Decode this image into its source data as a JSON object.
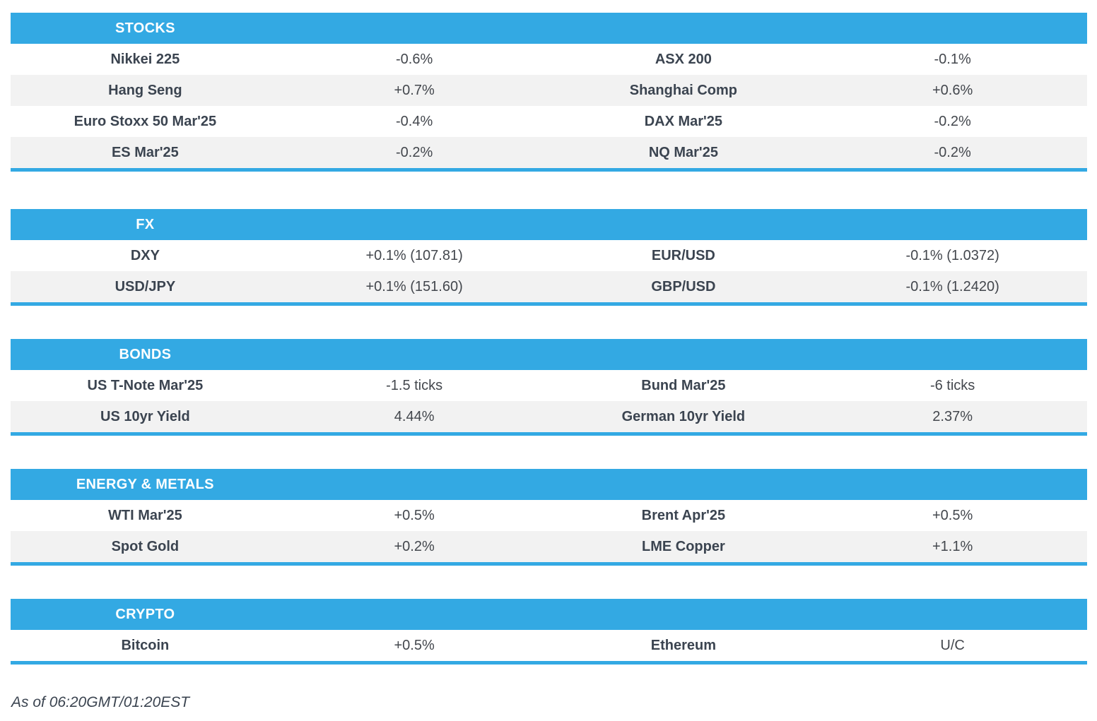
{
  "colors": {
    "accent_blue": "#33a9e3",
    "alt_row_bg": "#f2f2f2",
    "label_text": "#3b4450",
    "value_text": "#43474d",
    "header_text": "#ffffff"
  },
  "sections": [
    {
      "title": "STOCKS",
      "rows": [
        {
          "label_left": "Nikkei 225",
          "value_left": "-0.6%",
          "label_right": "ASX 200",
          "value_right": "-0.1%"
        },
        {
          "label_left": "Hang Seng",
          "value_left": "+0.7%",
          "label_right": "Shanghai Comp",
          "value_right": "+0.6%"
        },
        {
          "label_left": "Euro Stoxx 50 Mar'25",
          "value_left": "-0.4%",
          "label_right": "DAX Mar'25",
          "value_right": "-0.2%"
        },
        {
          "label_left": "ES Mar'25",
          "value_left": "-0.2%",
          "label_right": "NQ Mar'25",
          "value_right": "-0.2%"
        }
      ]
    },
    {
      "title": "FX",
      "rows": [
        {
          "label_left": "DXY",
          "value_left": "+0.1% (107.81)",
          "label_right": "EUR/USD",
          "value_right": "-0.1% (1.0372)"
        },
        {
          "label_left": "USD/JPY",
          "value_left": "+0.1% (151.60)",
          "label_right": "GBP/USD",
          "value_right": "-0.1% (1.2420)"
        }
      ]
    },
    {
      "title": "BONDS",
      "rows": [
        {
          "label_left": "US T-Note Mar'25",
          "value_left": "-1.5 ticks",
          "label_right": "Bund Mar'25",
          "value_right": "-6 ticks"
        },
        {
          "label_left": "US 10yr Yield",
          "value_left": "4.44%",
          "label_right": "German 10yr Yield",
          "value_right": "2.37%"
        }
      ]
    },
    {
      "title": "ENERGY & METALS",
      "rows": [
        {
          "label_left": "WTI Mar'25",
          "value_left": "+0.5%",
          "label_right": "Brent Apr'25",
          "value_right": "+0.5%"
        },
        {
          "label_left": "Spot Gold",
          "value_left": "+0.2%",
          "label_right": "LME Copper",
          "value_right": "+1.1%"
        }
      ]
    },
    {
      "title": "CRYPTO",
      "rows": [
        {
          "label_left": "Bitcoin",
          "value_left": "+0.5%",
          "label_right": "Ethereum",
          "value_right": "U/C"
        }
      ]
    }
  ],
  "footer": {
    "as_of": "As of 06:20GMT/01:20EST"
  }
}
